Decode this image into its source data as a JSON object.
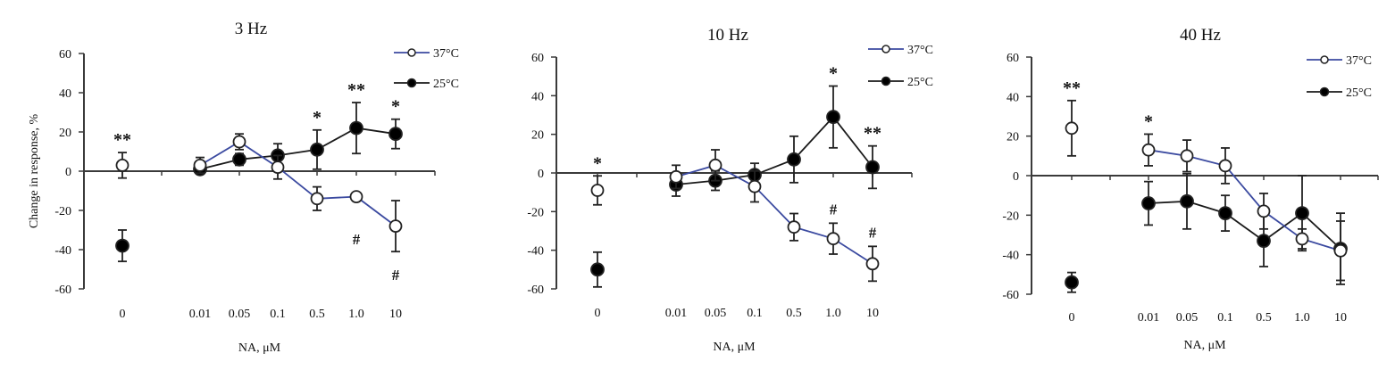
{
  "figure": {
    "ylabel": "Change in response, %",
    "colors": {
      "s37": "#3b4aa0",
      "s25": "#1a1a1a",
      "axis": "#3a3a3a"
    }
  },
  "chart_data": [
    {
      "type": "line",
      "title": "3 Hz",
      "xlabel": "NA, μM",
      "ylabel": "Change in response, %",
      "categories": [
        "0",
        "0.01",
        "0.05",
        "0.1",
        "0.5",
        "1.0",
        "10"
      ],
      "ylim": [
        -60,
        60
      ],
      "yticks": [
        60,
        40,
        20,
        0,
        -20,
        -40,
        -60
      ],
      "legend": {
        "placement": "top-right",
        "entries": [
          "37°C",
          "25°C"
        ]
      },
      "series": [
        {
          "name": "37°C",
          "marker": "open-circle",
          "values": [
            3,
            3,
            15,
            2,
            -14,
            -13,
            -28
          ],
          "errors": [
            6.5,
            4,
            4,
            6,
            6,
            1.5,
            13
          ],
          "annotations": [
            "**",
            "",
            "",
            "",
            "",
            "#",
            "#"
          ],
          "connected_from": 1
        },
        {
          "name": "25°C",
          "marker": "filled-circle",
          "values": [
            -38,
            1,
            6,
            8,
            11,
            22,
            19
          ],
          "errors": [
            8,
            1,
            3,
            6,
            10,
            13,
            7.5
          ],
          "annotations": [
            "",
            "",
            "",
            "",
            "*",
            "**",
            "*"
          ],
          "connected_from": 1
        }
      ]
    },
    {
      "type": "line",
      "title": "10 Hz",
      "xlabel": "NA, μM",
      "ylabel": "",
      "categories": [
        "0",
        "0.01",
        "0.05",
        "0.1",
        "0.5",
        "1.0",
        "10"
      ],
      "ylim": [
        -60,
        60
      ],
      "yticks": [
        60,
        40,
        20,
        0,
        -20,
        -40,
        -60
      ],
      "legend": {
        "placement": "top-right",
        "entries": [
          "37°C",
          "25°C"
        ]
      },
      "series": [
        {
          "name": "37°C",
          "marker": "open-circle",
          "values": [
            -9,
            -2,
            4,
            -7,
            -28,
            -34,
            -47
          ],
          "errors": [
            7.5,
            6,
            8,
            8,
            7,
            8,
            9
          ],
          "annotations": [
            "*",
            "",
            "",
            "",
            "",
            "#",
            "#"
          ],
          "connected_from": 1
        },
        {
          "name": "25°C",
          "marker": "filled-circle",
          "values": [
            -50,
            -6,
            -4,
            -1,
            7,
            29,
            3
          ],
          "errors": [
            9,
            6,
            5,
            6,
            12,
            16,
            11
          ],
          "annotations": [
            "",
            "",
            "",
            "",
            "",
            "*",
            "**"
          ],
          "connected_from": 1
        }
      ]
    },
    {
      "type": "line",
      "title": "40 Hz",
      "xlabel": "NA, μM",
      "ylabel": "",
      "categories": [
        "0",
        "0.01",
        "0.05",
        "0.1",
        "0.5",
        "1.0",
        "10"
      ],
      "ylim": [
        -60,
        60
      ],
      "yticks": [
        60,
        40,
        20,
        0,
        -20,
        -40,
        -60
      ],
      "legend": {
        "placement": "top-right",
        "entries": [
          "37°C",
          "25°C"
        ]
      },
      "series": [
        {
          "name": "37°C",
          "marker": "open-circle",
          "values": [
            24,
            13,
            10,
            5,
            -18,
            -32,
            -38
          ],
          "errors": [
            14,
            8,
            8,
            9,
            9,
            5,
            15
          ],
          "annotations": [
            "**",
            "*",
            "",
            "",
            "",
            "",
            ""
          ],
          "connected_from": 1
        },
        {
          "name": "25°C",
          "marker": "filled-circle",
          "values": [
            -54,
            -14,
            -13,
            -19,
            -33,
            -19,
            -37
          ],
          "errors": [
            5,
            11,
            14,
            9,
            13,
            19,
            18
          ],
          "annotations": [
            "",
            "",
            "",
            "",
            "",
            "",
            ""
          ],
          "connected_from": 1
        }
      ]
    }
  ]
}
